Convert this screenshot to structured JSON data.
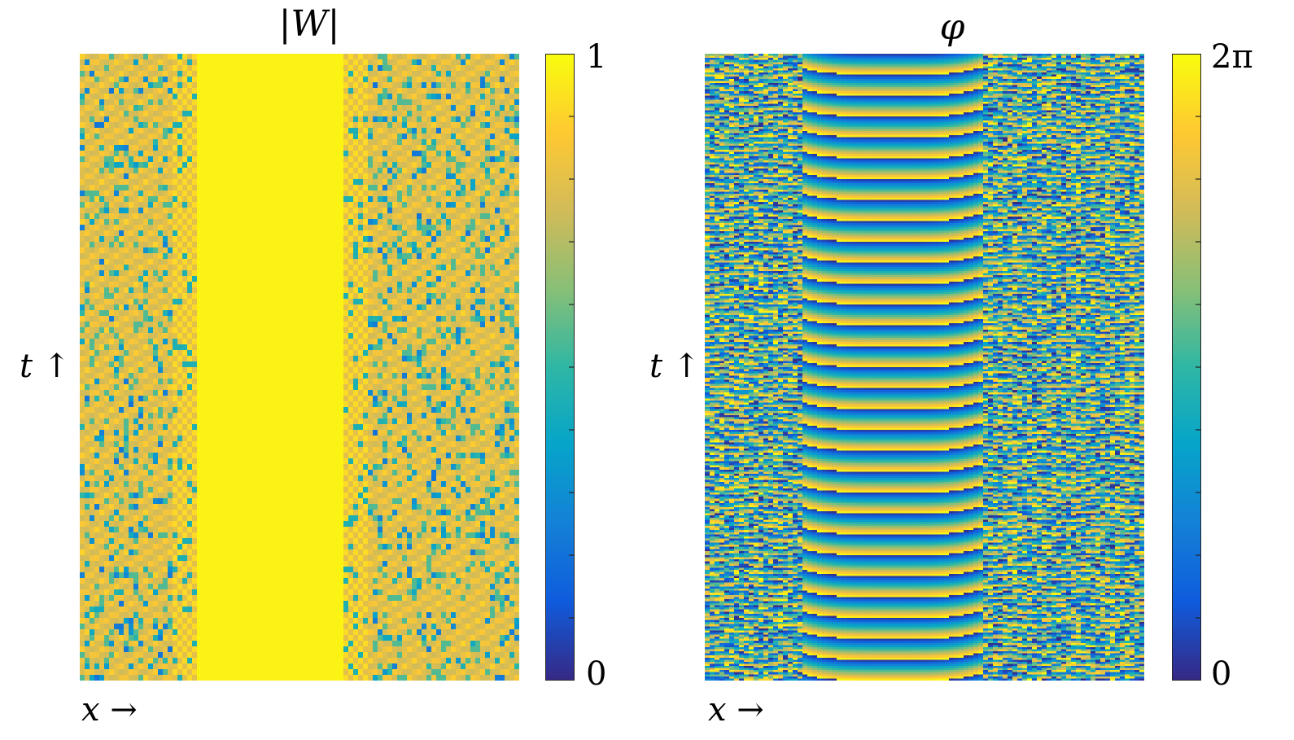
{
  "colors": {
    "parula": [
      "#352a87",
      "#0f5cdd",
      "#1481d6",
      "#06a4ca",
      "#2eb7a4",
      "#87bf77",
      "#d1bb59",
      "#fec832",
      "#f9fb0e"
    ]
  },
  "chart_data": [
    {
      "type": "heatmap",
      "title": "|W|",
      "xlabel": "x →",
      "ylabel": "t ↑",
      "colorbar": {
        "min_label": "0",
        "max_label": "1",
        "range": [
          0,
          1
        ],
        "ticks": 11
      },
      "description_regions": {
        "coherent_band_x_fraction": [
          0.27,
          0.6
        ],
        "coherent_value": 1.0,
        "incoherent_value_range": [
          0.1,
          1.0
        ]
      }
    },
    {
      "type": "heatmap",
      "title": "φ",
      "xlabel": "x →",
      "ylabel": "t ↑",
      "colorbar": {
        "min_label": "0",
        "max_label": "2π",
        "range": [
          0,
          6.283
        ],
        "ticks": 11
      },
      "description_regions": {
        "coherent_band_x_fraction": [
          0.22,
          0.63
        ],
        "stripe_count": 30,
        "incoherent_stripe_count": 95
      }
    }
  ]
}
